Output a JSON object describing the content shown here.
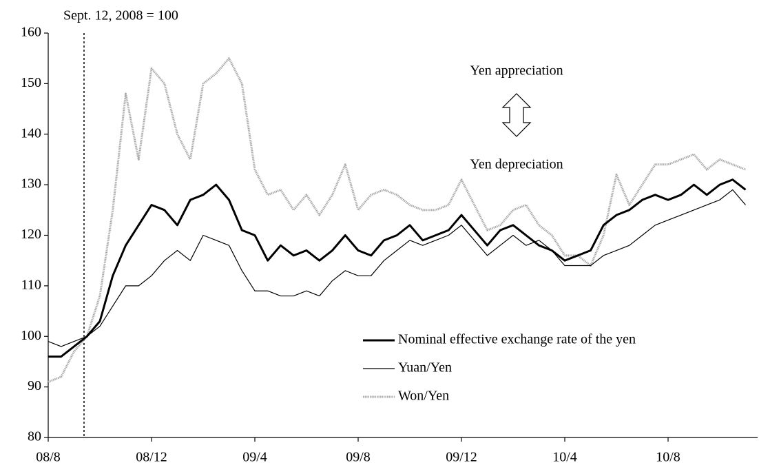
{
  "chart_data": {
    "type": "line",
    "y_label": "Sept. 12, 2008 = 100",
    "annotations": [
      "Yen appreciation",
      "Yen depreciation"
    ],
    "categories": [
      "08/8",
      null,
      null,
      null,
      null,
      null,
      null,
      null,
      "08/12",
      null,
      null,
      null,
      null,
      null,
      null,
      null,
      "09/4",
      null,
      null,
      null,
      null,
      null,
      null,
      null,
      "09/8",
      null,
      null,
      null,
      null,
      null,
      null,
      null,
      "09/12",
      null,
      null,
      null,
      null,
      null,
      null,
      null,
      "10/4",
      null,
      null,
      null,
      null,
      null,
      null,
      null,
      "10/8",
      null,
      null,
      null,
      null,
      null,
      null
    ],
    "series": [
      {
        "name": "Nominal effective exchange rate of the yen",
        "color": "#000000",
        "values": [
          96,
          96,
          98,
          100,
          103,
          112,
          118,
          122,
          126,
          125,
          122,
          127,
          128,
          130,
          127,
          121,
          120,
          115,
          118,
          116,
          117,
          115,
          117,
          120,
          117,
          116,
          119,
          120,
          122,
          119,
          120,
          121,
          124,
          121,
          118,
          121,
          122,
          120,
          118,
          117,
          115,
          116,
          117,
          122,
          124,
          125,
          127,
          128,
          127,
          128,
          130,
          128,
          130,
          131,
          129
        ]
      },
      {
        "name": "Yuan/Yen",
        "color": "#000000",
        "values": [
          99,
          98,
          99,
          100,
          102,
          106,
          110,
          110,
          112,
          115,
          117,
          115,
          120,
          119,
          118,
          113,
          109,
          109,
          108,
          108,
          109,
          108,
          111,
          113,
          112,
          112,
          115,
          117,
          119,
          118,
          119,
          120,
          122,
          119,
          116,
          118,
          120,
          118,
          119,
          117,
          114,
          114,
          114,
          116,
          117,
          118,
          120,
          122,
          123,
          124,
          125,
          126,
          127,
          129,
          126
        ]
      },
      {
        "name": "Won/Yen",
        "color": "#aaaaaa",
        "values": [
          91,
          92,
          97,
          100,
          108,
          125,
          148,
          135,
          153,
          150,
          140,
          135,
          150,
          152,
          155,
          150,
          133,
          128,
          129,
          125,
          128,
          124,
          128,
          134,
          125,
          128,
          129,
          128,
          126,
          125,
          125,
          126,
          131,
          126,
          121,
          122,
          125,
          126,
          122,
          120,
          116,
          116,
          114,
          120,
          132,
          126,
          130,
          134,
          134,
          135,
          136,
          133,
          135,
          134,
          133
        ]
      }
    ],
    "ylim": [
      80,
      160
    ],
    "yticks": [
      80,
      90,
      100,
      110,
      120,
      130,
      140,
      150,
      160
    ],
    "legend": "lower right"
  }
}
